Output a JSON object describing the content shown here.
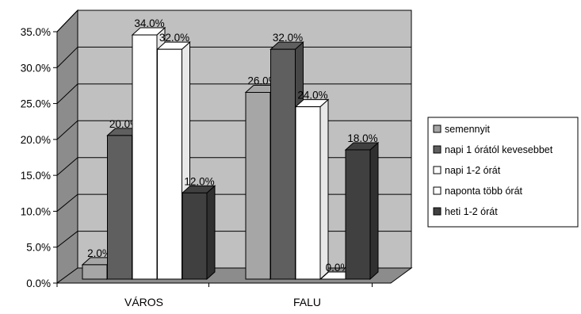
{
  "chart_data": {
    "type": "bar",
    "categories": [
      "VÁROS",
      "FALU"
    ],
    "series": [
      {
        "name": "semennyit",
        "values": [
          2.0,
          26.0
        ],
        "color": "#a6a6a6"
      },
      {
        "name": "napi 1 órától kevesebbet",
        "values": [
          20.0,
          32.0
        ],
        "color": "#5f5f5f"
      },
      {
        "name": "napi 1-2 órát",
        "values": [
          34.0,
          24.0
        ],
        "color": "#ffffff"
      },
      {
        "name": "naponta több órát",
        "values": [
          32.0,
          0.0
        ],
        "color": "#ffffff"
      },
      {
        "name": "heti 1-2 órát",
        "values": [
          12.0,
          18.0
        ],
        "color": "#404040"
      }
    ],
    "y_ticks": [
      "0.0%",
      "5.0%",
      "10.0%",
      "15.0%",
      "20.0%",
      "25.0%",
      "30.0%",
      "35.0%"
    ],
    "ylim": [
      0,
      35
    ],
    "data_labels": [
      [
        "2.0%",
        "20.0%",
        "34.0%",
        "32.0%",
        "12.0%"
      ],
      [
        "26.0%",
        "32.0%",
        "24.0%",
        "0.0%",
        "18.0%"
      ]
    ],
    "legend_position": "right",
    "grid": true,
    "three_d": true,
    "title": "",
    "xlabel": "",
    "ylabel": ""
  }
}
